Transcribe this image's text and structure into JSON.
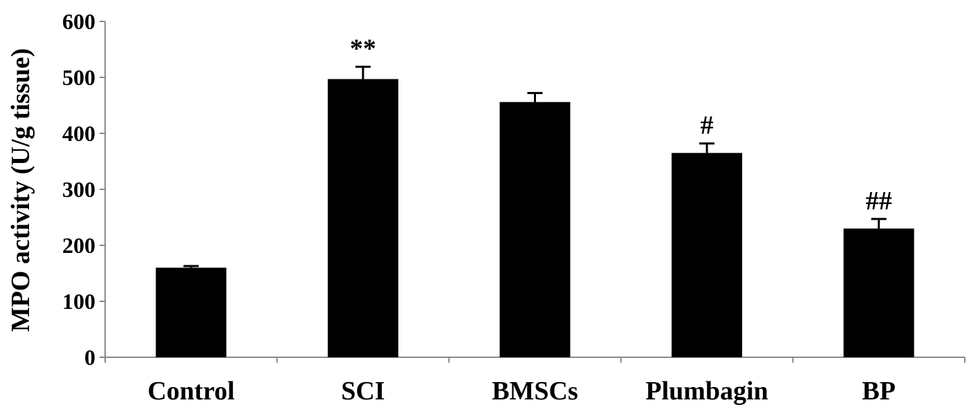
{
  "chart_data": {
    "type": "bar",
    "title": "",
    "xlabel": "",
    "ylabel": "MPO activity (U/g tissue)",
    "ylim": [
      0,
      600
    ],
    "yticks": [
      0,
      100,
      200,
      300,
      400,
      500,
      600
    ],
    "categories": [
      "Control",
      "SCI",
      "BMSCs",
      "Plumbagin",
      "BP"
    ],
    "values": [
      160,
      497,
      456,
      365,
      230
    ],
    "errors": [
      3,
      22,
      16,
      17,
      17
    ],
    "annotations": [
      "",
      "**",
      "",
      "#",
      "##"
    ],
    "bar_color": "#000000",
    "grid": false,
    "legend": "none"
  }
}
